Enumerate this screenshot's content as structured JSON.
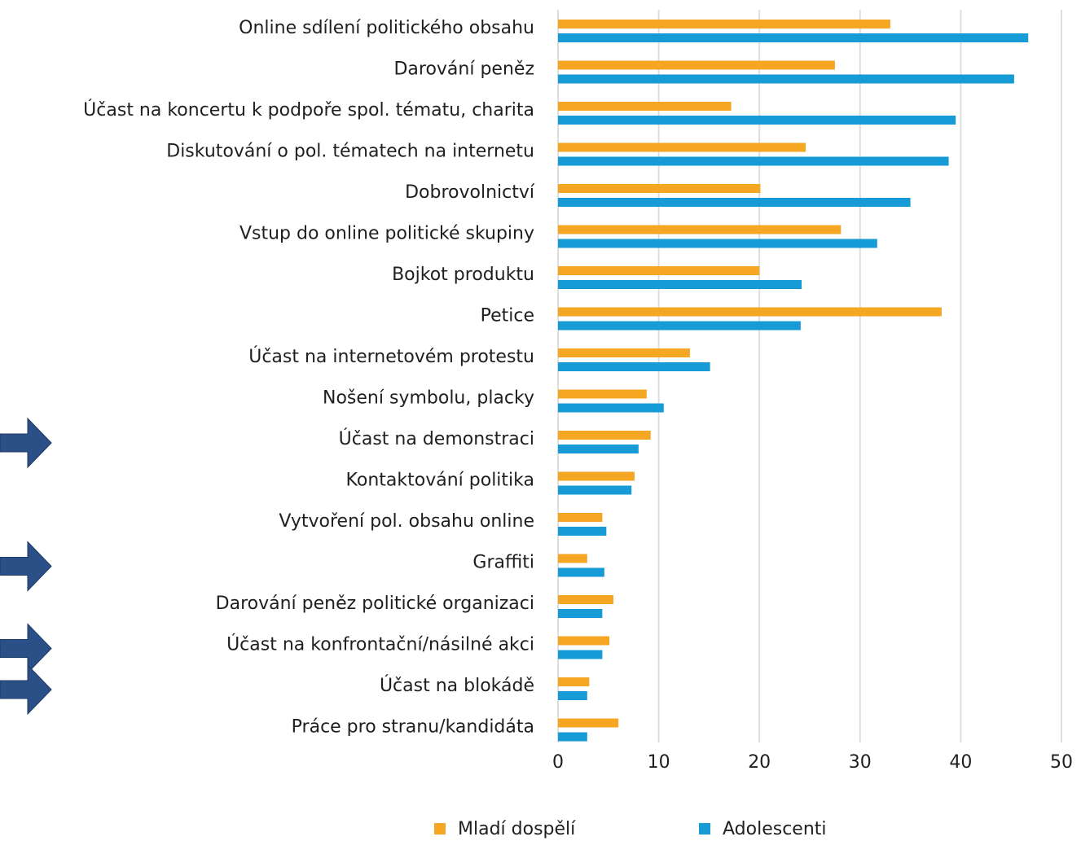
{
  "chart_data": {
    "type": "bar",
    "orientation": "horizontal",
    "categories": [
      "Online sdílení politického obsahu",
      "Darování peněz",
      "Účast na koncertu k podpoře spol. tématu, charita",
      "Diskutování o pol. tématech na internetu",
      "Dobrovolnictví",
      "Vstup do online politické skupiny",
      "Bojkot produktu",
      "Petice",
      "Účast na internetovém protestu",
      "Nošení symbolu, placky",
      "Účast na demonstraci",
      "Kontaktování politika",
      "Vytvoření pol. obsahu online",
      "Graffiti",
      "Darování peněz politické organizaci",
      "Účast na konfrontační/násilné akci",
      "Účast na blokádě",
      "Práce pro stranu/kandidáta"
    ],
    "series": [
      {
        "name": "Mladí dospělí",
        "color": "#f5a623",
        "values": [
          33,
          27.5,
          17.2,
          24.6,
          20.1,
          28.1,
          20,
          38.1,
          13.1,
          8.8,
          9.2,
          7.6,
          4.4,
          2.9,
          5.5,
          5.1,
          3.1,
          6
        ]
      },
      {
        "name": "Adolescenti",
        "color": "#169bd7",
        "values": [
          46.7,
          45.3,
          39.5,
          38.8,
          35,
          31.7,
          24.2,
          24.1,
          15.1,
          10.5,
          8,
          7.3,
          4.8,
          4.6,
          4.4,
          4.4,
          2.9,
          2.9
        ]
      }
    ],
    "xlim": [
      0,
      50
    ],
    "xticks": [
      0,
      10,
      20,
      30,
      40,
      50
    ],
    "grid": true,
    "legend_position": "bottom",
    "title": "",
    "xlabel": "",
    "ylabel": ""
  },
  "annotations": {
    "arrow_markers": [
      "Účast na demonstraci",
      "Graffiti",
      "Účast na konfrontační/násilné akci",
      "Účast na blokádě"
    ],
    "arrow_color": "#2b4f87",
    "arrow_icon": "right-arrow-icon"
  },
  "colors": {
    "gridline": "#dedede",
    "text": "#1f1f1f",
    "background": "#ffffff"
  }
}
